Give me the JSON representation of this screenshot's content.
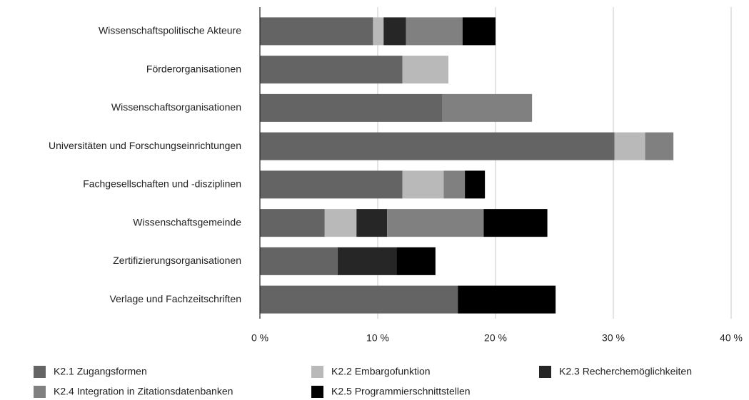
{
  "chart_data": {
    "type": "stacked-barh",
    "categories": [
      "Wissenschaftspolitische Akteure",
      "Förderorganisationen",
      "Wissenschaftsorganisationen",
      "Universitäten und Forschungseinrichtungen",
      "Fachgesellschaften und -disziplinen",
      "Wissenschaftsgemeinde",
      "Zertifizierungsorganisationen",
      "Verlage und Fachzeitschriften"
    ],
    "series": [
      {
        "name": "K2.1 Zugangsformen",
        "color": "#646464",
        "values": [
          9.6,
          12.1,
          15.5,
          30.1,
          12.1,
          5.5,
          6.6,
          16.8
        ]
      },
      {
        "name": "K2.2 Embargofunktion",
        "color": "#b9b9b9",
        "values": [
          0.9,
          3.9,
          0,
          2.6,
          3.5,
          2.7,
          0,
          0
        ]
      },
      {
        "name": "K2.3 Recherchemöglichkeiten",
        "color": "#262626",
        "values": [
          1.9,
          0,
          0,
          0,
          0,
          2.6,
          5.0,
          0
        ]
      },
      {
        "name": "K2.4 Integration in Zitationsdatenbanken",
        "color": "#808080",
        "values": [
          4.8,
          0,
          7.6,
          2.4,
          1.8,
          8.2,
          0,
          0
        ]
      },
      {
        "name": "K2.5 Programmierschnittstellen",
        "color": "#000000",
        "values": [
          2.8,
          0,
          0,
          0,
          1.7,
          5.4,
          3.3,
          8.3
        ]
      }
    ],
    "xlim": [
      0,
      40
    ],
    "xticks": [
      {
        "value": 0,
        "label": "0 %"
      },
      {
        "value": 10,
        "label": "10 %"
      },
      {
        "value": 20,
        "label": "20 %"
      },
      {
        "value": 30,
        "label": "30 %"
      },
      {
        "value": 40,
        "label": "40 %"
      }
    ],
    "grid": true
  }
}
